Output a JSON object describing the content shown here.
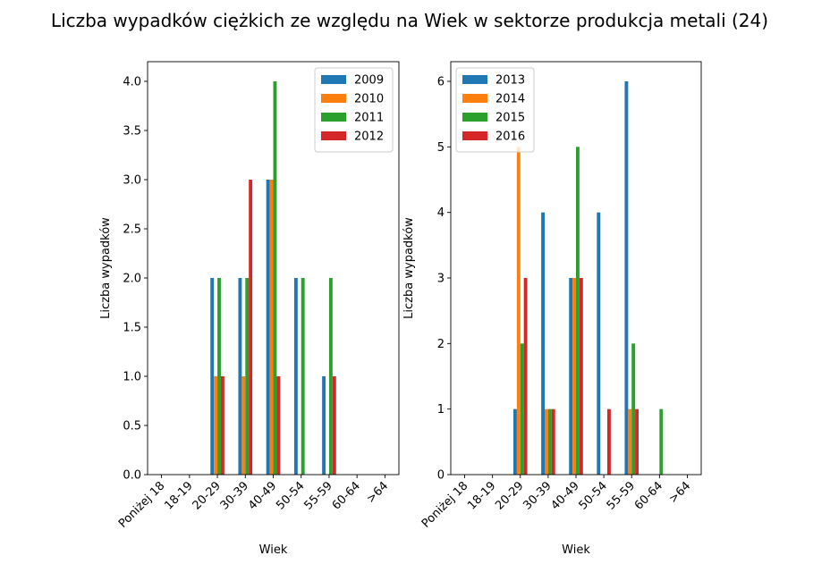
{
  "figure": {
    "title": "Liczba wypadków ciężkich ze względu na Wiek w sektorze produkcja metali (24)"
  },
  "chart_data": [
    {
      "type": "bar",
      "xlabel": "Wiek",
      "ylabel": "Liczba wypadków",
      "categories": [
        "Poniżej 18",
        "18-19",
        "20-29",
        "30-39",
        "40-49",
        "50-54",
        "55-59",
        "60-64",
        ">64"
      ],
      "ylim": [
        0,
        4.2
      ],
      "yticks": [
        0.0,
        0.5,
        1.0,
        1.5,
        2.0,
        2.5,
        3.0,
        3.5,
        4.0
      ],
      "ytick_labels": [
        "0.0",
        "0.5",
        "1.0",
        "1.5",
        "2.0",
        "2.5",
        "3.0",
        "3.5",
        "4.0"
      ],
      "legend_position": "top-right",
      "grid": false,
      "series": [
        {
          "name": "2009",
          "color": "#1f77b4",
          "values": [
            0,
            0,
            2,
            2,
            3,
            2,
            1,
            0,
            0
          ]
        },
        {
          "name": "2010",
          "color": "#ff7f0e",
          "values": [
            0,
            0,
            1,
            1,
            3,
            0,
            0,
            0,
            0
          ]
        },
        {
          "name": "2011",
          "color": "#2ca02c",
          "values": [
            0,
            0,
            2,
            2,
            4,
            2,
            2,
            0,
            0
          ]
        },
        {
          "name": "2012",
          "color": "#d62728",
          "values": [
            0,
            0,
            1,
            3,
            1,
            0,
            1,
            0,
            0
          ]
        }
      ]
    },
    {
      "type": "bar",
      "xlabel": "Wiek",
      "ylabel": "Liczba wypadków",
      "categories": [
        "Poniżej 18",
        "18-19",
        "20-29",
        "30-39",
        "40-49",
        "50-54",
        "55-59",
        "60-64",
        ">64"
      ],
      "ylim": [
        0,
        6.3
      ],
      "yticks": [
        0,
        1,
        2,
        3,
        4,
        5,
        6
      ],
      "ytick_labels": [
        "0",
        "1",
        "2",
        "3",
        "4",
        "5",
        "6"
      ],
      "legend_position": "top-left",
      "grid": false,
      "series": [
        {
          "name": "2013",
          "color": "#1f77b4",
          "values": [
            0,
            0,
            1,
            4,
            3,
            4,
            6,
            0,
            0
          ]
        },
        {
          "name": "2014",
          "color": "#ff7f0e",
          "values": [
            0,
            0,
            5,
            1,
            3,
            0,
            1,
            0,
            0
          ]
        },
        {
          "name": "2015",
          "color": "#2ca02c",
          "values": [
            0,
            0,
            2,
            1,
            5,
            0,
            2,
            1,
            0
          ]
        },
        {
          "name": "2016",
          "color": "#d62728",
          "values": [
            0,
            0,
            3,
            1,
            3,
            1,
            1,
            0,
            0
          ]
        }
      ]
    }
  ]
}
